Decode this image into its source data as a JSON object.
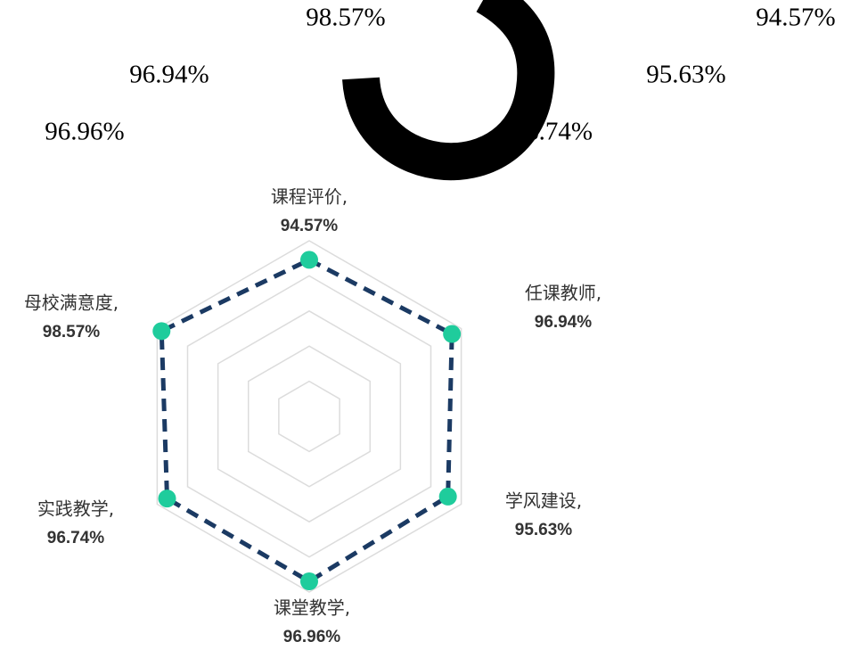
{
  "overlay_labels": [
    "98.57%",
    "94.57%",
    "96.94%",
    "95.63%",
    "96.96%",
    "96.74%"
  ],
  "chart_data": {
    "type": "radar",
    "categories": [
      "课程评价,",
      "任课教师,",
      "学风建设,",
      "课堂教学,",
      "实践教学,",
      "母校满意度,"
    ],
    "series": [
      {
        "color": "#1b3a63",
        "marker_color": "#1fcc9c",
        "values": [
          94.57,
          96.94,
          95.63,
          96.96,
          96.74,
          98.57
        ],
        "value_labels": [
          "94.57%",
          "96.94%",
          "95.63%",
          "96.96%",
          "96.74%",
          "98.57%"
        ]
      }
    ],
    "rlim": [
      50,
      100
    ],
    "rticks": [
      60,
      70,
      80,
      90,
      100
    ],
    "grid": true
  }
}
